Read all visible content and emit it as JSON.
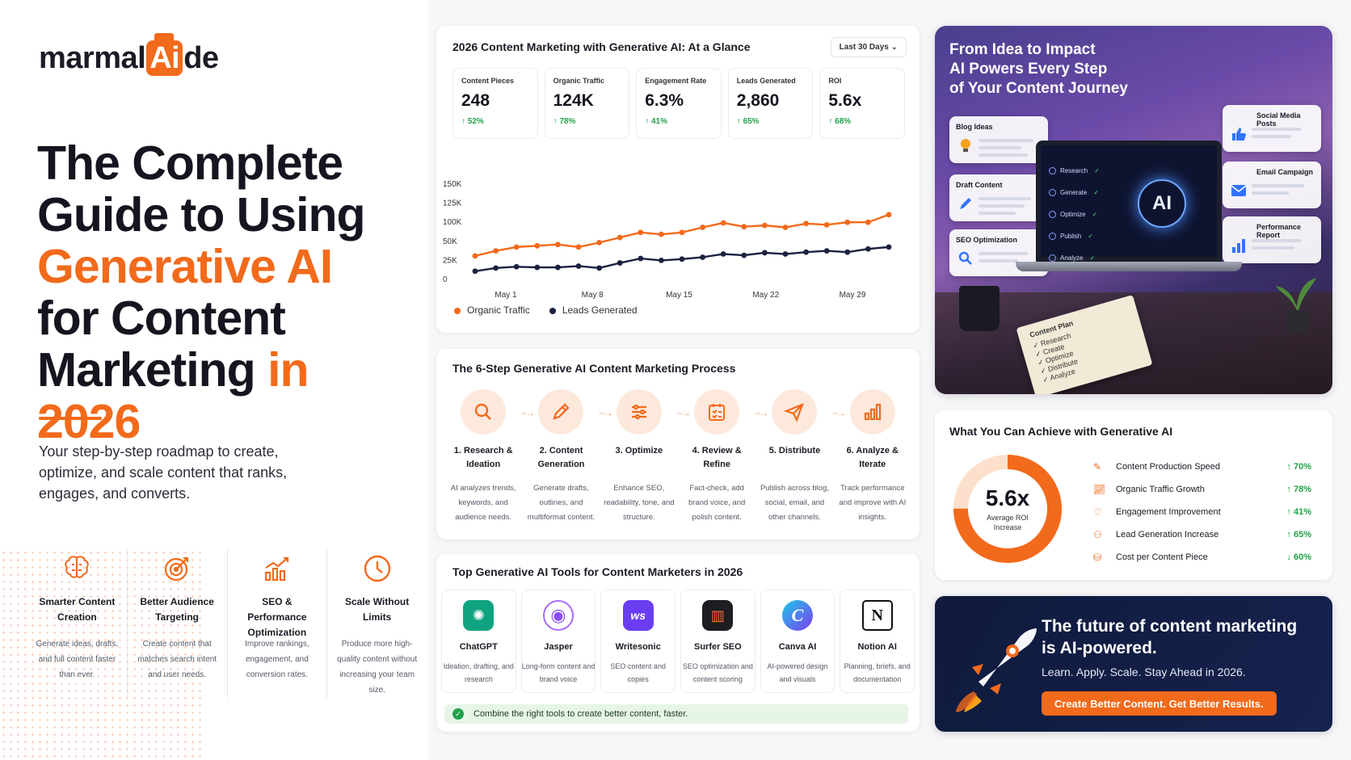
{
  "brand": {
    "logo_prefix": "marmal",
    "logo_ai": "Ai",
    "logo_suffix": "de"
  },
  "hero_left": {
    "headline_line1": "The Complete",
    "headline_line2": "Guide to Using",
    "headline_line3": "Generative AI",
    "headline_line4": "for Content",
    "headline_line5a": "Marketing ",
    "headline_line5b": "in 2026",
    "subtitle": "Your step-by-step roadmap to create, optimize, and scale content that ranks, engages, and converts."
  },
  "features": [
    {
      "icon": "brain-icon",
      "title": "Smarter Content Creation",
      "desc": "Generate ideas, drafts, and full content faster than ever."
    },
    {
      "icon": "target-icon",
      "title": "Better Audience Targeting",
      "desc": "Create content that matches search intent and user needs."
    },
    {
      "icon": "growth-chart-icon",
      "title": "SEO & Performance Optimization",
      "desc": "Improve rankings, engagement, and conversion rates."
    },
    {
      "icon": "clock-icon",
      "title": "Scale Without Limits",
      "desc": "Produce more high-quality content without increasing your team size."
    }
  ],
  "dashboard": {
    "title": "2026 Content Marketing with Generative AI: At a Glance",
    "range": "Last 30 Days",
    "kpis": [
      {
        "label": "Content Pieces",
        "value": "248",
        "change": "52%"
      },
      {
        "label": "Organic Traffic",
        "value": "124K",
        "change": "78%"
      },
      {
        "label": "Engagement Rate",
        "value": "6.3%",
        "change": "41%"
      },
      {
        "label": "Leads Generated",
        "value": "2,860",
        "change": "65%"
      },
      {
        "label": "ROI",
        "value": "5.6x",
        "change": "68%"
      }
    ],
    "legend": {
      "organic": "Organic Traffic",
      "leads": "Leads Generated"
    }
  },
  "chart_data": {
    "type": "line",
    "x_ticks": [
      "May 1",
      "May 8",
      "May 15",
      "May 22",
      "May 29"
    ],
    "y_ticks": [
      "0",
      "25K",
      "50K",
      "100K",
      "125K",
      "150K"
    ],
    "ylim": [
      0,
      150
    ],
    "series": [
      {
        "name": "Organic Traffic",
        "color": "#f26a1b",
        "values": [
          37,
          45,
          51,
          53,
          55,
          51,
          58,
          66,
          74,
          71,
          74,
          82,
          89,
          83,
          85,
          82,
          88,
          86,
          90,
          90,
          102
        ]
      },
      {
        "name": "Leads Generated",
        "color": "#1b2140",
        "values": [
          13,
          18,
          20,
          19,
          19,
          21,
          18,
          26,
          33,
          30,
          32,
          35,
          40,
          38,
          42,
          40,
          43,
          45,
          43,
          48,
          51
        ]
      }
    ],
    "colors": {
      "organic": "#f26a1b",
      "leads": "#1b2140"
    }
  },
  "process": {
    "title": "The 6-Step Generative AI Content Marketing Process",
    "steps": [
      {
        "icon": "search-icon",
        "title": "1. Research & Ideation",
        "desc": "AI analyzes trends, keywords, and audience needs."
      },
      {
        "icon": "pencil-icon",
        "title": "2. Content Generation",
        "desc": "Generate drafts, outlines, and multiformat content."
      },
      {
        "icon": "sliders-icon",
        "title": "3. Optimize",
        "desc": "Enhance SEO, readability, tone, and structure."
      },
      {
        "icon": "checklist-icon",
        "title": "4. Review & Refine",
        "desc": "Fact-check, add brand voice, and polish content."
      },
      {
        "icon": "send-icon",
        "title": "5. Distribute",
        "desc": "Publish across blog, social, email, and other channels."
      },
      {
        "icon": "bar-chart-icon",
        "title": "6. Analyze & Iterate",
        "desc": "Track performance and improve with AI insights."
      }
    ]
  },
  "tools": {
    "title": "Top Generative AI Tools for Content Marketers in 2026",
    "items": [
      {
        "name": "ChatGPT",
        "desc": "Ideation, drafting, and research",
        "color": "#10a37f",
        "glyph": "✺"
      },
      {
        "name": "Jasper",
        "desc": "Long-form content and brand voice",
        "color": "#ffffff",
        "glyph": "◉"
      },
      {
        "name": "Writesonic",
        "desc": "SEO content and copies",
        "color": "#6a3df0",
        "glyph": "ws"
      },
      {
        "name": "Surfer SEO",
        "desc": "SEO optimization and content scoring",
        "color": "#1d1d22",
        "glyph": "▥"
      },
      {
        "name": "Canva AI",
        "desc": "AI-powered design and visuals",
        "color": "#1fb6e8",
        "glyph": "C"
      },
      {
        "name": "Notion AI",
        "desc": "Planning, briefs, and documentation",
        "color": "#ffffff",
        "glyph": "N"
      }
    ],
    "tip": "Combine the right tools to create better content, faster."
  },
  "hero_image": {
    "title_line1": "From Idea to Impact",
    "title_line2": "AI Powers Every Step",
    "title_line3": "of Your Content Journey",
    "cards_left": [
      "Blog Ideas",
      "Draft Content",
      "SEO Optimization"
    ],
    "cards_right": [
      "Social Media Posts",
      "Email Campaign",
      "Performance Report"
    ],
    "screen_menu": [
      "Research",
      "Generate",
      "Optimize",
      "Publish",
      "Analyze"
    ],
    "screen_ai": "AI",
    "notebook_title": "Content Plan",
    "notebook_items": [
      "✓ Research",
      "✓ Create",
      "✓ Optimize",
      "✓ Distribute",
      "✓ Analyze"
    ]
  },
  "achieve": {
    "title": "What You Can Achieve with Generative AI",
    "donut_value": "5.6x",
    "donut_label": "Average ROI Increase",
    "donut_fraction": 0.75,
    "metrics": [
      {
        "icon": "edit-icon",
        "name": "Content Production Speed",
        "value": "70%",
        "dir": "↑"
      },
      {
        "icon": "trend-icon",
        "name": "Organic Traffic Growth",
        "value": "78%",
        "dir": "↑"
      },
      {
        "icon": "heart-icon",
        "name": "Engagement Improvement",
        "value": "41%",
        "dir": "↑"
      },
      {
        "icon": "users-icon",
        "name": "Lead Generation Increase",
        "value": "65%",
        "dir": "↑"
      },
      {
        "icon": "coins-icon",
        "name": "Cost per Content Piece",
        "value": "60%",
        "dir": "↓"
      }
    ]
  },
  "future": {
    "title": "The future of content marketing is AI-powered.",
    "subtitle": "Learn. Apply. Scale. Stay Ahead in 2026.",
    "cta": "Create Better Content. Get Better Results."
  }
}
